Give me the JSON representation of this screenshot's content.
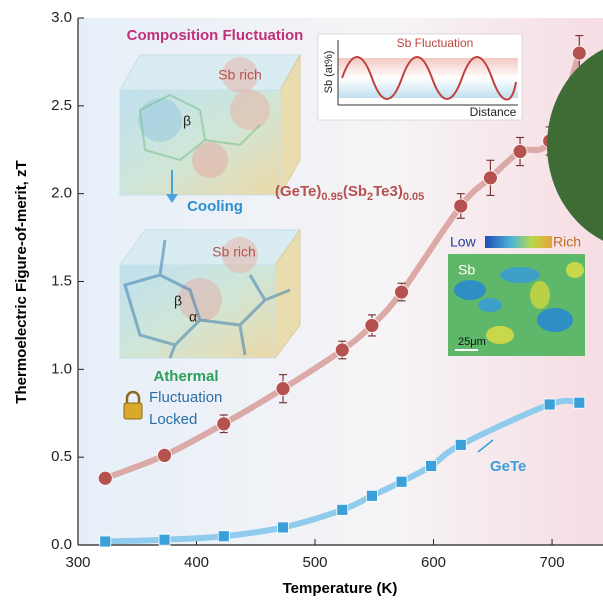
{
  "chart_data": {
    "type": "line",
    "xlabel": "Temperature (K)",
    "ylabel": "Thermoelectric Figure-of-merit, zT",
    "xlim": [
      300,
      743
    ],
    "ylim": [
      0,
      3
    ],
    "xticks": [
      300,
      400,
      500,
      600,
      700
    ],
    "yticks": [
      {
        "value": 0,
        "label": "0.0"
      },
      0.5,
      {
        "value": 1,
        "label": "1.0"
      },
      1.5,
      {
        "value": 2,
        "label": "2.0"
      },
      2.5,
      {
        "value": 3,
        "label": "3.0"
      }
    ],
    "series": [
      {
        "name": "(GeTe)0.95(Sb2Te3)0.05",
        "color": "#b5524f",
        "line_color": "#dba9a6",
        "marker": "circle",
        "x": [
          323,
          373,
          423,
          473,
          523,
          548,
          573,
          623,
          648,
          673,
          698,
          723
        ],
        "values": [
          0.38,
          0.51,
          0.69,
          0.89,
          1.11,
          1.25,
          1.44,
          1.93,
          2.09,
          2.24,
          2.3,
          2.8
        ],
        "errors": [
          0.02,
          0.02,
          0.05,
          0.08,
          0.05,
          0.06,
          0.05,
          0.07,
          0.1,
          0.08,
          0.08,
          0.1
        ]
      },
      {
        "name": "GeTe",
        "color": "#3b9fd9",
        "line_color": "#8fcbec",
        "marker": "square",
        "x": [
          323,
          373,
          423,
          473,
          523,
          548,
          573,
          598,
          623,
          698,
          723
        ],
        "values": [
          0.02,
          0.03,
          0.05,
          0.1,
          0.2,
          0.28,
          0.36,
          0.45,
          0.57,
          0.8,
          0.81
        ]
      }
    ],
    "annotations": {
      "composition": "Composition Fluctuation",
      "sb_rich_1": "Sb rich",
      "beta_1": "β",
      "cooling": "Cooling",
      "sb_rich_2": "Sb rich",
      "beta_2": "β",
      "alpha": "α",
      "athermal": "Athermal",
      "fluctuation": "Fluctuation",
      "locked": "Locked",
      "inset_ylabel": "Sb (at%)",
      "inset_title": "Sb Fluctuation",
      "inset_xlabel": "Distance",
      "map_low": "Low",
      "map_rich": "Rich",
      "map_element": "Sb",
      "map_scale": "25μm"
    }
  }
}
